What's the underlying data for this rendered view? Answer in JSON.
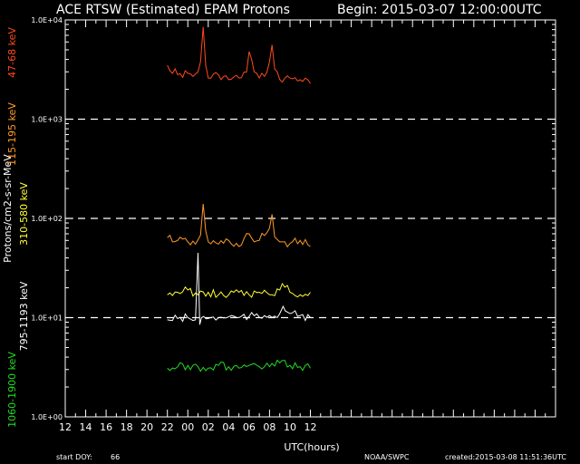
{
  "chart_data": {
    "type": "line",
    "title": "ACE RTSW (Estimated) EPAM Protons",
    "begin_label": "Begin: 2015-03-07 12:00:00UTC",
    "xlabel": "UTC(hours)",
    "ylabel": "Protons/cm2-s-sr-MeV",
    "y_scale": "log",
    "ylim": [
      1,
      10000
    ],
    "y_ticks": [
      {
        "value": 1,
        "label": "1.0E+00"
      },
      {
        "value": 10,
        "label": "1.0E+01"
      },
      {
        "value": 100,
        "label": "1.0E+02"
      },
      {
        "value": 1000,
        "label": "1.0E+03"
      },
      {
        "value": 10000,
        "label": "1.0E+04"
      }
    ],
    "dashed_reference_lines": [
      10,
      100,
      1000
    ],
    "xlim": [
      "2015-03-07 12:00",
      "2015-03-09 12:00"
    ],
    "x_ticks": [
      {
        "value": "2015-03-07 12:00",
        "label": "12"
      },
      {
        "value": "2015-03-07 14:00",
        "label": "14"
      },
      {
        "value": "2015-03-07 16:00",
        "label": "16"
      },
      {
        "value": "2015-03-07 18:00",
        "label": "18"
      },
      {
        "value": "2015-03-07 20:00",
        "label": "20"
      },
      {
        "value": "2015-03-07 22:00",
        "label": "22"
      },
      {
        "value": "2015-03-08 00:00",
        "label": "00"
      },
      {
        "value": "2015-03-08 02:00",
        "label": "02"
      },
      {
        "value": "2015-03-08 04:00",
        "label": "04"
      },
      {
        "value": "2015-03-08 06:00",
        "label": "06"
      },
      {
        "value": "2015-03-08 08:00",
        "label": "08"
      },
      {
        "value": "2015-03-08 10:00",
        "label": "10"
      },
      {
        "value": "2015-03-08 12:00",
        "label": "12"
      }
    ],
    "series": [
      {
        "name": "47-68 keV",
        "color": "#ff4a1a",
        "x": [
          "2015-03-07 22:00",
          "2015-03-07 23:00",
          "2015-03-08 00:00",
          "2015-03-08 00:30",
          "2015-03-08 01:00",
          "2015-03-08 01:15",
          "2015-03-08 01:30",
          "2015-03-08 01:45",
          "2015-03-08 02:00",
          "2015-03-08 03:00",
          "2015-03-08 04:00",
          "2015-03-08 05:00",
          "2015-03-08 05:45",
          "2015-03-08 06:00",
          "2015-03-08 06:15",
          "2015-03-08 06:30",
          "2015-03-08 07:00",
          "2015-03-08 07:30",
          "2015-03-08 08:00",
          "2015-03-08 08:15",
          "2015-03-08 08:30",
          "2015-03-08 09:00",
          "2015-03-08 10:00",
          "2015-03-08 11:00",
          "2015-03-08 12:00"
        ],
        "values": [
          3500,
          2800,
          2900,
          2700,
          3000,
          3800,
          8500,
          3500,
          2600,
          2800,
          2500,
          2600,
          3000,
          4800,
          4000,
          3000,
          2600,
          2700,
          3800,
          5600,
          3200,
          2500,
          2600,
          2500,
          2300
        ]
      },
      {
        "name": "115-195 keV",
        "color": "#ff9a2a",
        "x": [
          "2015-03-07 22:00",
          "2015-03-07 23:00",
          "2015-03-08 00:00",
          "2015-03-08 00:45",
          "2015-03-08 01:15",
          "2015-03-08 01:30",
          "2015-03-08 01:45",
          "2015-03-08 02:00",
          "2015-03-08 03:00",
          "2015-03-08 04:00",
          "2015-03-08 05:00",
          "2015-03-08 06:00",
          "2015-03-08 06:30",
          "2015-03-08 07:00",
          "2015-03-08 08:00",
          "2015-03-08 08:15",
          "2015-03-08 08:30",
          "2015-03-08 09:00",
          "2015-03-08 10:00",
          "2015-03-08 11:00",
          "2015-03-08 12:00"
        ],
        "values": [
          64,
          60,
          58,
          55,
          68,
          140,
          75,
          58,
          55,
          60,
          52,
          70,
          58,
          60,
          80,
          110,
          65,
          58,
          56,
          60,
          52
        ]
      },
      {
        "name": "310-580 keV",
        "color": "#ffff33",
        "x": [
          "2015-03-07 22:00",
          "2015-03-07 23:00",
          "2015-03-08 00:00",
          "2015-03-08 01:00",
          "2015-03-08 02:00",
          "2015-03-08 03:00",
          "2015-03-08 04:00",
          "2015-03-08 05:00",
          "2015-03-08 06:00",
          "2015-03-08 07:00",
          "2015-03-08 08:00",
          "2015-03-08 09:00",
          "2015-03-08 09:15",
          "2015-03-08 10:00",
          "2015-03-08 11:00",
          "2015-03-08 12:00"
        ],
        "values": [
          17,
          18,
          19,
          17,
          18,
          17,
          17,
          18,
          17,
          18,
          17,
          19,
          22,
          18,
          17,
          18
        ]
      },
      {
        "name": "795-1193 keV",
        "color": "#ffffff",
        "x": [
          "2015-03-07 22:00",
          "2015-03-07 23:00",
          "2015-03-08 00:00",
          "2015-03-08 00:45",
          "2015-03-08 01:00",
          "2015-03-08 01:10",
          "2015-03-08 01:20",
          "2015-03-08 02:00",
          "2015-03-08 03:00",
          "2015-03-08 04:00",
          "2015-03-08 05:00",
          "2015-03-08 06:00",
          "2015-03-08 07:00",
          "2015-03-08 08:00",
          "2015-03-08 09:00",
          "2015-03-08 09:20",
          "2015-03-08 10:00",
          "2015-03-08 11:00",
          "2015-03-08 12:00"
        ],
        "values": [
          9.5,
          9.8,
          10,
          9.5,
          45,
          8.5,
          10,
          9.8,
          10,
          10.2,
          10,
          10.3,
          10.1,
          10.5,
          11,
          13,
          11,
          10.5,
          10
        ]
      },
      {
        "name": "1060-1900 keV",
        "color": "#22dd22",
        "x": [
          "2015-03-07 22:00",
          "2015-03-07 23:00",
          "2015-03-08 00:00",
          "2015-03-08 01:00",
          "2015-03-08 02:00",
          "2015-03-08 03:00",
          "2015-03-08 04:00",
          "2015-03-08 05:00",
          "2015-03-08 06:00",
          "2015-03-08 07:00",
          "2015-03-08 08:00",
          "2015-03-08 09:00",
          "2015-03-08 10:00",
          "2015-03-08 11:00",
          "2015-03-08 12:00"
        ],
        "values": [
          3.1,
          3.2,
          3.3,
          3.2,
          3.1,
          3.3,
          3.2,
          3.1,
          3.3,
          3.2,
          3.2,
          3.5,
          3.3,
          3.2,
          3.1
        ]
      }
    ],
    "footer": {
      "start_doy_label": "start DOY:",
      "start_doy_value": "66",
      "source": "NOAA/SWPC",
      "created": "created:2015-03-08 11:51:36UTC"
    }
  }
}
